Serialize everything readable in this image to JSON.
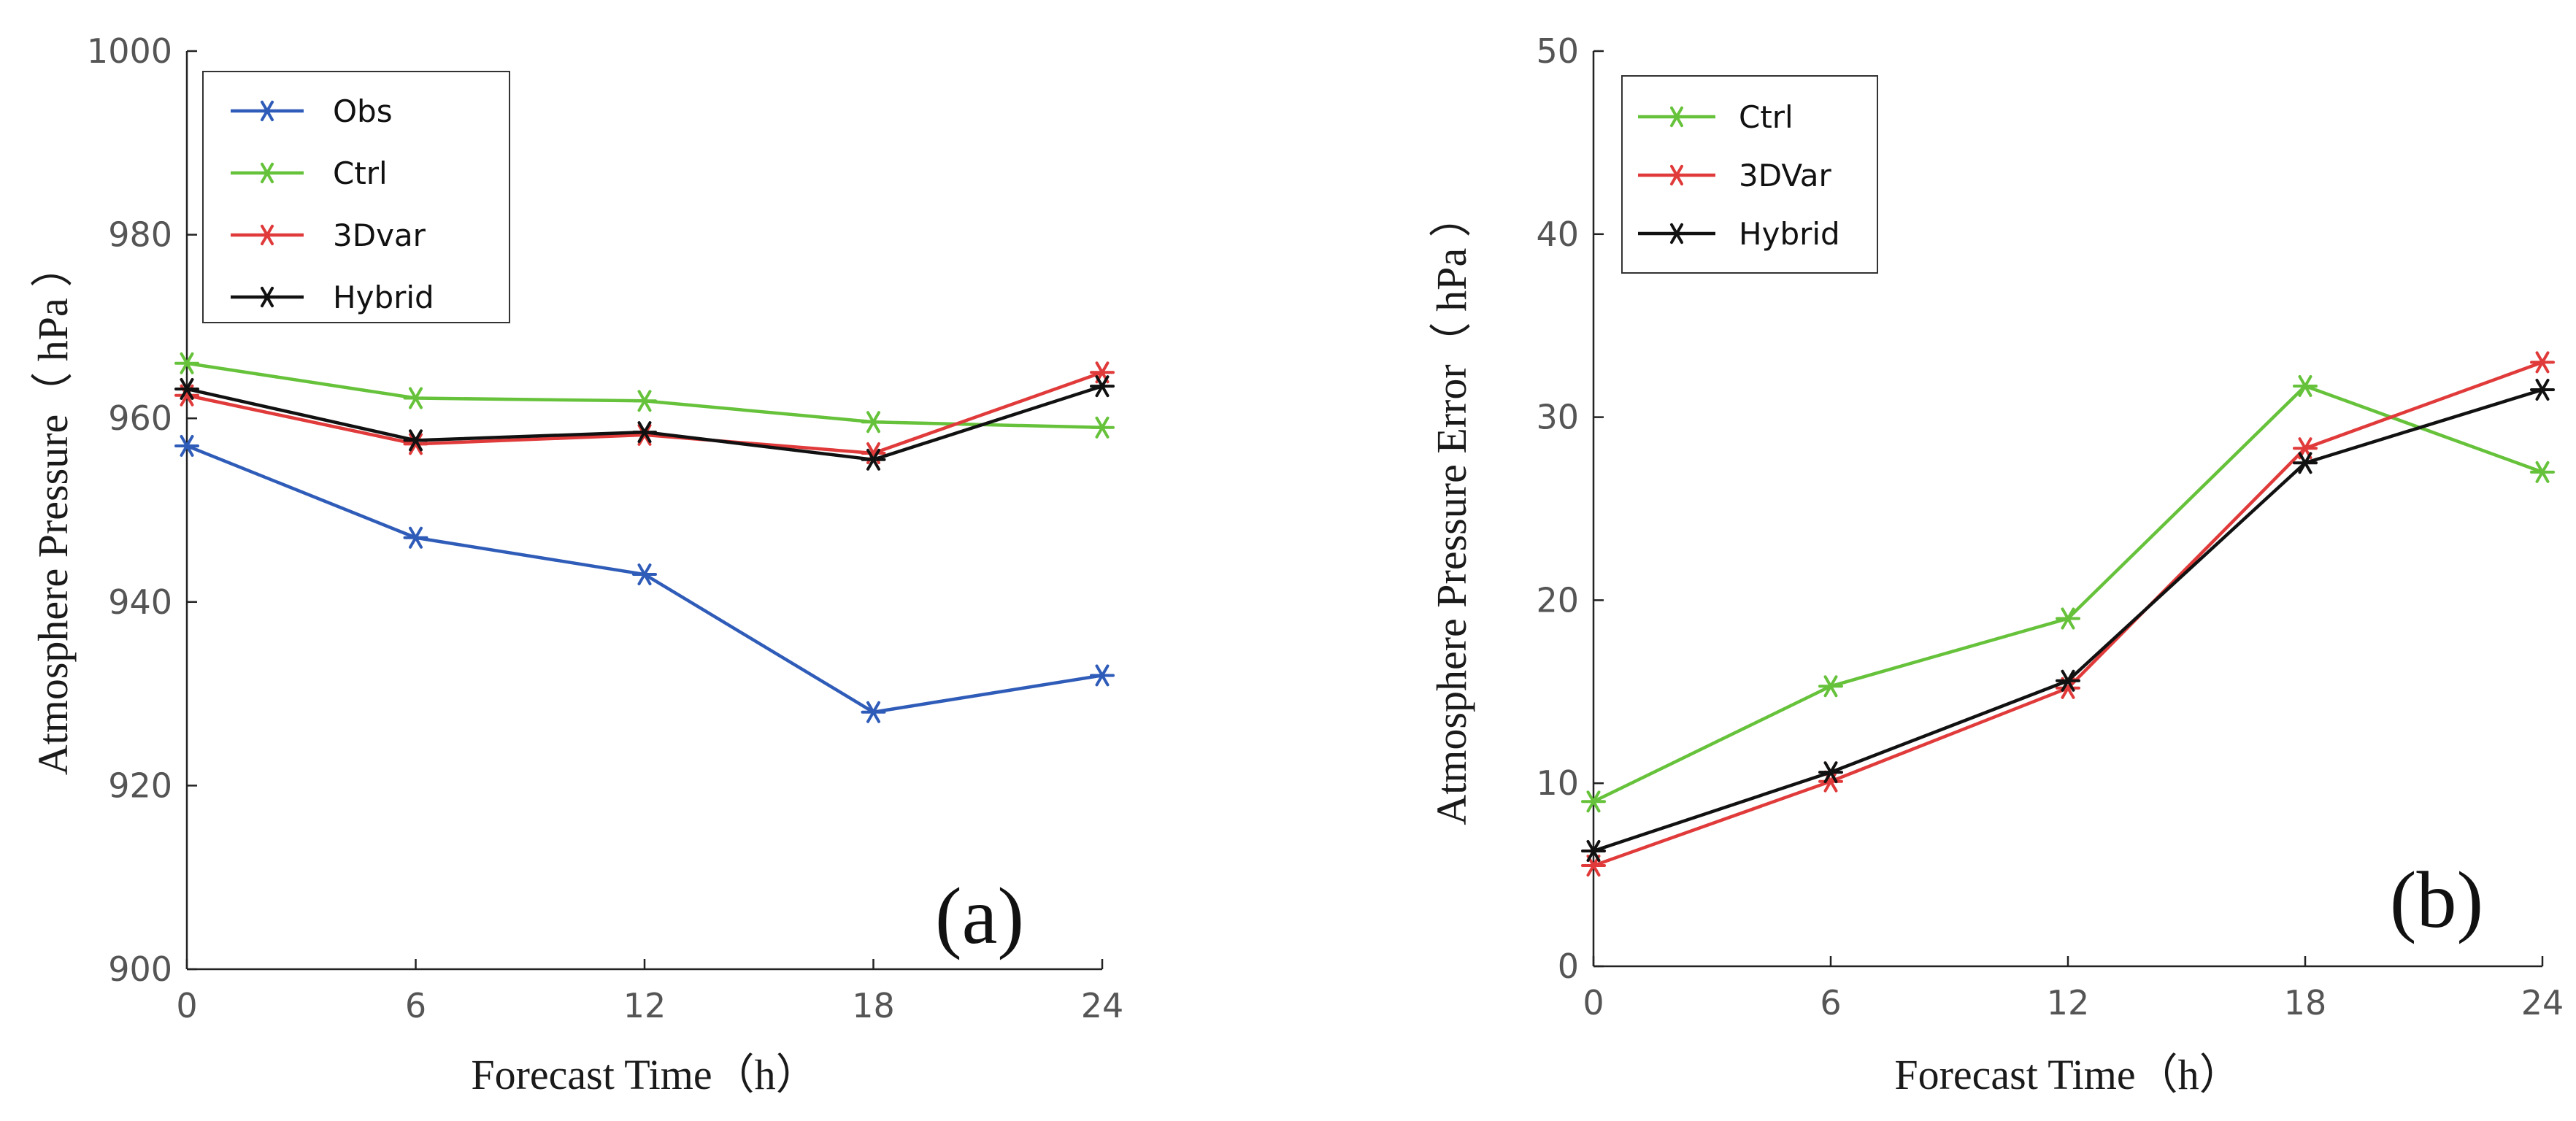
{
  "chart_data": [
    {
      "panel": "(a)",
      "type": "line",
      "title": "",
      "xlabel": "Forecast Time（h）",
      "ylabel": "Atmosphere Pressure（ hPa ）",
      "x": [
        0,
        6,
        12,
        18,
        24
      ],
      "xticks": [
        0,
        6,
        12,
        18,
        24
      ],
      "xtick_labels": [
        "0",
        "6",
        "12",
        "18",
        "24"
      ],
      "xlim": [
        0,
        24
      ],
      "ylim": [
        900,
        1000
      ],
      "yticks": [
        900,
        920,
        940,
        960,
        980,
        1000
      ],
      "ytick_labels": [
        "900",
        "920",
        "940",
        "960",
        "980",
        "1000"
      ],
      "grid": false,
      "legend_position": "top-left",
      "series": [
        {
          "name": "Obs",
          "color": "#2f5cb8",
          "values": [
            957,
            947,
            943,
            928,
            932
          ]
        },
        {
          "name": "Ctrl",
          "color": "#66c23a",
          "values": [
            966,
            962.2,
            961.9,
            959.6,
            959
          ]
        },
        {
          "name": "3Dvar",
          "color": "#e03a3a",
          "values": [
            962.5,
            957.2,
            958.2,
            956.2,
            965
          ]
        },
        {
          "name": "Hybrid",
          "color": "#111111",
          "values": [
            963.2,
            957.6,
            958.5,
            955.5,
            963.5
          ]
        }
      ]
    },
    {
      "panel": "(b)",
      "type": "line",
      "title": "",
      "xlabel": "Forecast Time（h）",
      "ylabel": "Atmosphere Pressure Error（ hPa ）",
      "x": [
        0,
        6,
        12,
        18,
        24
      ],
      "xticks": [
        0,
        6,
        12,
        18,
        24
      ],
      "xtick_labels": [
        "0",
        "6",
        "12",
        "18",
        "24"
      ],
      "xlim": [
        0,
        24
      ],
      "ylim": [
        0,
        50
      ],
      "yticks": [
        0,
        10,
        20,
        30,
        40,
        50
      ],
      "ytick_labels": [
        "0",
        "10",
        "20",
        "30",
        "40",
        "50"
      ],
      "grid": false,
      "legend_position": "top-left",
      "series": [
        {
          "name": "Ctrl",
          "color": "#66c23a",
          "values": [
            9,
            15.3,
            19,
            31.7,
            27
          ]
        },
        {
          "name": "3DVar",
          "color": "#e03a3a",
          "values": [
            5.5,
            10.1,
            15.2,
            28.3,
            33
          ]
        },
        {
          "name": "Hybrid",
          "color": "#111111",
          "values": [
            6.3,
            10.6,
            15.6,
            27.5,
            31.5
          ]
        }
      ]
    }
  ]
}
